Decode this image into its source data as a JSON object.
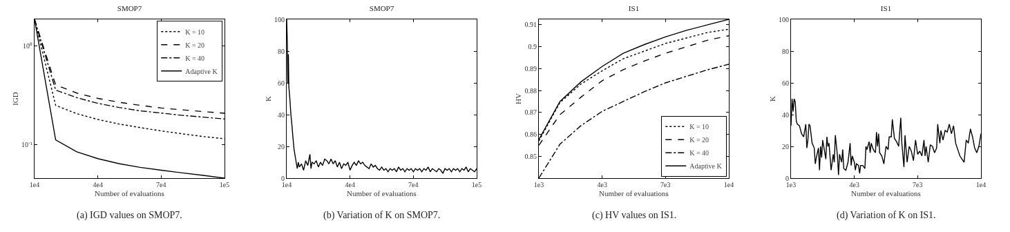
{
  "chart_data": [
    {
      "type": "line",
      "title": "SMOP7",
      "xlabel": "Number of evaluations",
      "ylabel": "IGD",
      "log": "y",
      "grid": false,
      "legend": "top right",
      "marker": "none",
      "x": [
        10000,
        20000,
        30000,
        40000,
        50000,
        60000,
        70000,
        80000,
        90000,
        100000
      ],
      "xlim": [
        10000,
        100000
      ],
      "xticks": [
        {
          "value": 10000,
          "label": "1e4"
        },
        {
          "value": 40000,
          "label": "4e4"
        },
        {
          "value": 70000,
          "label": "7e4"
        },
        {
          "value": 100000,
          "label": "1e5"
        }
      ],
      "ylim": [
        0.0454,
        1.86
      ],
      "yticks": [
        {
          "value": 1,
          "label": "10⁰"
        },
        {
          "value": 0.1,
          "label": "10⁻¹"
        }
      ],
      "series": [
        {
          "name": "K = 10",
          "color": "#000000",
          "line_style": "dotted",
          "values": [
            1.86,
            0.249,
            0.205,
            0.179,
            0.161,
            0.148,
            0.137,
            0.128,
            0.12,
            0.114
          ]
        },
        {
          "name": "K = 20",
          "color": "#000000",
          "line_style": "dashed",
          "values": [
            1.86,
            0.401,
            0.332,
            0.293,
            0.268,
            0.249,
            0.234,
            0.224,
            0.215,
            0.207
          ]
        },
        {
          "name": "K = 40",
          "color": "#000000",
          "line_style": "dashdot",
          "values": [
            1.86,
            0.356,
            0.298,
            0.261,
            0.237,
            0.219,
            0.208,
            0.197,
            0.189,
            0.181
          ]
        },
        {
          "name": "Adaptive K",
          "color": "#000000",
          "line_style": "solid",
          "values": [
            1.86,
            0.111,
            0.084,
            0.0716,
            0.0637,
            0.0584,
            0.0547,
            0.0513,
            0.0484,
            0.0454
          ]
        }
      ],
      "annotations": [
        "(a) IGD values on SMOP7."
      ]
    },
    {
      "type": "line",
      "title": "SMOP7",
      "xlabel": "Number of evaluations",
      "ylabel": "K",
      "grid": false,
      "legend": false,
      "marker": "none",
      "x": [
        10000,
        10300,
        10500,
        10800,
        11000,
        11500,
        12000,
        12500,
        13000,
        13500,
        14000,
        14500,
        15000,
        15500,
        16000,
        17000,
        18000,
        19000,
        20000,
        21000,
        21500,
        22000,
        23000,
        24000,
        25000,
        26000,
        27000,
        28000,
        29000,
        30000,
        31000,
        32000,
        33000,
        34000,
        35000,
        36000,
        37000,
        38000,
        39000,
        40000,
        41000,
        42000,
        43000,
        44000,
        45000,
        46000,
        47000,
        48000,
        49000,
        50000,
        51000,
        52000,
        53000,
        54000,
        55000,
        56000,
        57000,
        58000,
        59000,
        60000,
        61000,
        62000,
        63000,
        64000,
        65000,
        66000,
        67000,
        68000,
        69000,
        70000,
        71000,
        72000,
        73000,
        74000,
        75000,
        76000,
        77000,
        78000,
        79000,
        80000,
        81000,
        82000,
        83000,
        84000,
        85000,
        86000,
        87000,
        88000,
        89000,
        90000,
        91000,
        92000,
        93000,
        94000,
        95000,
        96000,
        97000,
        98000,
        99000,
        100000
      ],
      "xlim": [
        10000,
        100000
      ],
      "xticks": [
        {
          "value": 10000,
          "label": "1e4"
        },
        {
          "value": 40000,
          "label": "4e4"
        },
        {
          "value": 70000,
          "label": "7e4"
        },
        {
          "value": 100000,
          "label": "1e5"
        }
      ],
      "ylim": [
        0,
        100
      ],
      "yticks": [
        0,
        20,
        40,
        60,
        80,
        100
      ],
      "series": [
        {
          "color": "#000000",
          "line_style": "solid",
          "values": [
            100,
            85,
            60,
            78,
            58,
            50,
            40,
            33,
            25,
            18,
            14,
            10,
            6,
            10,
            7,
            9,
            5,
            11,
            8,
            15,
            6,
            10,
            9,
            11,
            7,
            10,
            8,
            12,
            11,
            9,
            12,
            9,
            11,
            7,
            10,
            6,
            9,
            8,
            10,
            5,
            8,
            10,
            8,
            11,
            9,
            10,
            8,
            7,
            6,
            9,
            7,
            8,
            6,
            5,
            7,
            5,
            6,
            4,
            6,
            5,
            6,
            4,
            7,
            5,
            6,
            4,
            6,
            5,
            6,
            4,
            6,
            5,
            6,
            4,
            6,
            5,
            7,
            4,
            6,
            5,
            4,
            6,
            5,
            3,
            6,
            5,
            6,
            4,
            6,
            5,
            6,
            4,
            6,
            5,
            7,
            4,
            6,
            5,
            4,
            6
          ]
        }
      ],
      "annotations": [
        "(b) Variation of K on SMOP7."
      ]
    },
    {
      "type": "line",
      "title": "IS1",
      "xlabel": "Number of evaluations",
      "ylabel": "HV",
      "grid": false,
      "legend": "bottom right",
      "marker": "none",
      "x": [
        1000,
        2000,
        3000,
        4000,
        5000,
        6000,
        7000,
        8000,
        9000,
        10000
      ],
      "xlim": [
        1000,
        10000
      ],
      "xticks": [
        {
          "value": 1000,
          "label": "1e3"
        },
        {
          "value": 4000,
          "label": "4e3"
        },
        {
          "value": 7000,
          "label": "7e3"
        },
        {
          "value": 10000,
          "label": "1e4"
        }
      ],
      "ylim": [
        0.84,
        0.9125
      ],
      "yticks": [
        0.85,
        0.86,
        0.87,
        0.88,
        0.89,
        0.9,
        0.91
      ],
      "series": [
        {
          "name": "K = 10",
          "color": "#000000",
          "line_style": "dotted",
          "values": [
            0.857,
            0.8745,
            0.883,
            0.889,
            0.8945,
            0.898,
            0.9015,
            0.904,
            0.9065,
            0.908
          ]
        },
        {
          "name": "K = 20",
          "color": "#000000",
          "line_style": "dashed",
          "values": [
            0.855,
            0.869,
            0.877,
            0.8845,
            0.8895,
            0.8935,
            0.897,
            0.9,
            0.903,
            0.905
          ]
        },
        {
          "name": "K = 40",
          "color": "#000000",
          "line_style": "dashdot",
          "values": [
            0.84,
            0.8555,
            0.864,
            0.8705,
            0.875,
            0.8795,
            0.8835,
            0.8865,
            0.8895,
            0.892
          ]
        },
        {
          "name": "Adaptive K",
          "color": "#000000",
          "line_style": "solid",
          "values": [
            0.8576,
            0.875,
            0.884,
            0.891,
            0.897,
            0.901,
            0.9045,
            0.9075,
            0.91,
            0.9125
          ]
        }
      ],
      "annotations": [
        "(c) HV values on IS1."
      ]
    },
    {
      "type": "line",
      "title": "IS1",
      "xlabel": "Number of evaluations",
      "ylabel": "K",
      "grid": false,
      "legend": false,
      "marker": "none",
      "x": [
        1000,
        1050,
        1100,
        1150,
        1200,
        1250,
        1300,
        1400,
        1500,
        1600,
        1700,
        1750,
        1800,
        1850,
        1900,
        2000,
        2100,
        2150,
        2200,
        2300,
        2350,
        2400,
        2450,
        2500,
        2600,
        2650,
        2700,
        2750,
        2800,
        2900,
        3000,
        3050,
        3100,
        3200,
        3250,
        3300,
        3400,
        3450,
        3500,
        3600,
        3700,
        3800,
        3850,
        3900,
        4000,
        4050,
        4100,
        4200,
        4250,
        4300,
        4400,
        4500,
        4550,
        4600,
        4700,
        4750,
        4800,
        4900,
        5000,
        5050,
        5100,
        5150,
        5200,
        5300,
        5400,
        5500,
        5600,
        5650,
        5750,
        5800,
        5900,
        6000,
        6100,
        6200,
        6250,
        6350,
        6400,
        6500,
        6600,
        6700,
        6800,
        6900,
        7000,
        7100,
        7200,
        7300,
        7350,
        7400,
        7500,
        7600,
        7700,
        7800,
        7900,
        7950,
        8050,
        8100,
        8200,
        8300,
        8400,
        8500,
        8600,
        8700,
        8800,
        8900,
        9000,
        9100,
        9200,
        9300,
        9400,
        9500,
        9600,
        9700,
        9800,
        9900,
        10000
      ],
      "xlim": [
        1000,
        10000
      ],
      "xticks": [
        {
          "value": 1000,
          "label": "1e3"
        },
        {
          "value": 4000,
          "label": "4e3"
        },
        {
          "value": 7000,
          "label": "7e3"
        },
        {
          "value": 10000,
          "label": "1e4"
        }
      ],
      "ylim": [
        0,
        100
      ],
      "yticks": [
        0,
        20,
        40,
        60,
        80,
        100
      ],
      "series": [
        {
          "color": "#000000",
          "line_style": "solid",
          "values": [
            33,
            50,
            42,
            50,
            48,
            36,
            34,
            33,
            28,
            26,
            34,
            19,
            24,
            34,
            33,
            22,
            19,
            9,
            13,
            19,
            5,
            20,
            13,
            24,
            16,
            12,
            26,
            20,
            22,
            5,
            15,
            10,
            27,
            14,
            2,
            15,
            10,
            18,
            6,
            5,
            10,
            22,
            8,
            14,
            10,
            5,
            9,
            8,
            3,
            8,
            8,
            6,
            20,
            18,
            23,
            16,
            22,
            18,
            16,
            29,
            20,
            28,
            16,
            14,
            9,
            20,
            18,
            26,
            26,
            37,
            25,
            23,
            20,
            38,
            22,
            7,
            27,
            10,
            20,
            17,
            11,
            24,
            15,
            17,
            14,
            24,
            14,
            20,
            10,
            21,
            20,
            16,
            19,
            34,
            22,
            30,
            24,
            30,
            29,
            34,
            28,
            33,
            22,
            18,
            14,
            12,
            10,
            24,
            22,
            31,
            26,
            19,
            16,
            20,
            28
          ]
        }
      ],
      "annotations": [
        "(d) Variation of K on IS1."
      ]
    }
  ]
}
